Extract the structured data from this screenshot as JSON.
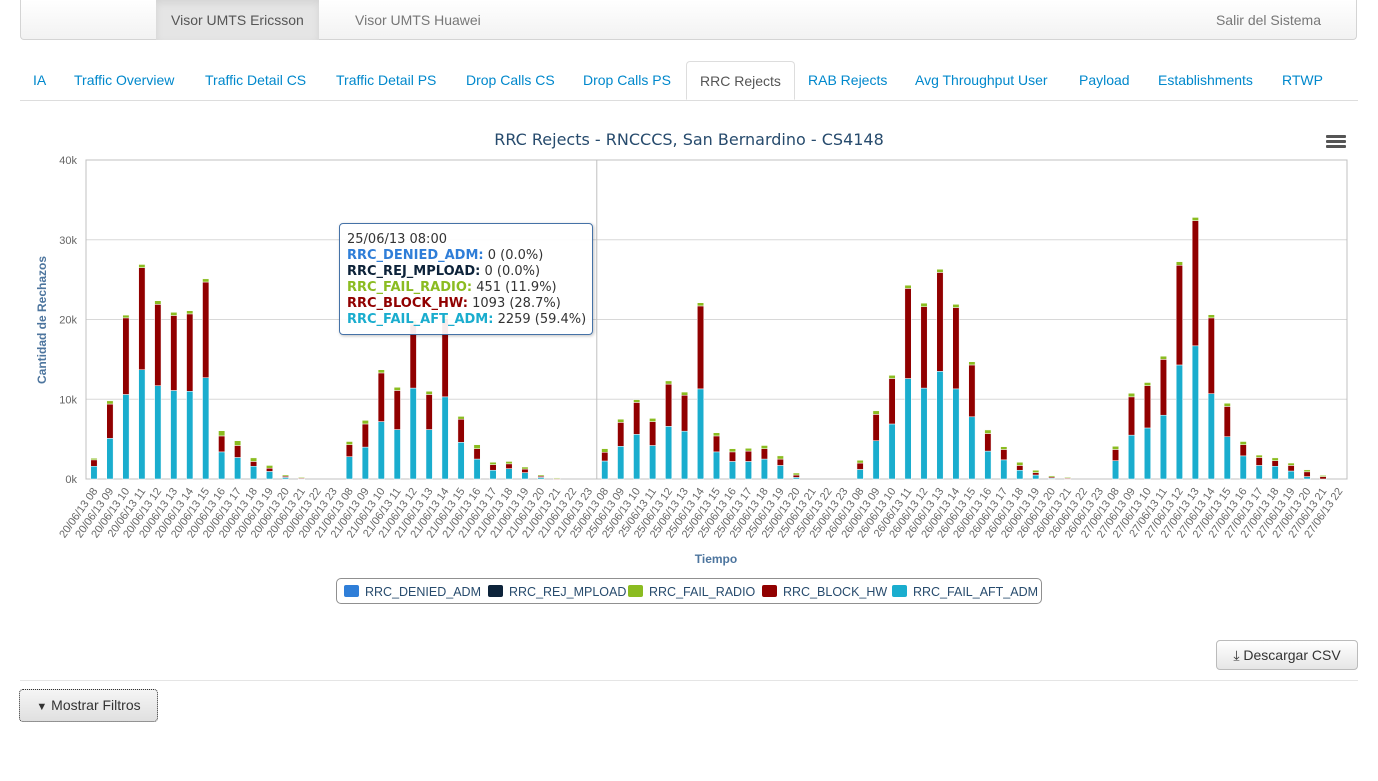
{
  "navbar": {
    "items": [
      "Visor UMTS Ericsson",
      "Visor UMTS Huawei"
    ],
    "logout": "Salir del Sistema"
  },
  "tabs": [
    "IA",
    "Traffic Overview",
    "Traffic Detail CS",
    "Traffic Detail PS",
    "Drop Calls CS",
    "Drop Calls PS",
    "RRC Rejects",
    "RAB Rejects",
    "Avg Throughput User",
    "Payload",
    "Establishments",
    "RTWP"
  ],
  "active_tab": "RRC Rejects",
  "colors": {
    "RRC_DENIED_ADM": "#2f7ed8",
    "RRC_REJ_MPLOAD": "#0d233a",
    "RRC_FAIL_RADIO": "#8bbc21",
    "RRC_BLOCK_HW": "#910000",
    "RRC_FAIL_AFT_ADM": "#1aadce"
  },
  "tooltip": {
    "header": "25/06/13 08:00",
    "rows": [
      {
        "name": "RRC_DENIED_ADM:",
        "value": "0 (0.0%)",
        "color": "#2f7ed8"
      },
      {
        "name": "RRC_REJ_MPLOAD:",
        "value": "0 (0.0%)",
        "color": "#0d233a"
      },
      {
        "name": "RRC_FAIL_RADIO:",
        "value": "451 (11.9%)",
        "color": "#8bbc21"
      },
      {
        "name": "RRC_BLOCK_HW:",
        "value": "1093 (28.7%)",
        "color": "#910000"
      },
      {
        "name": "RRC_FAIL_AFT_ADM:",
        "value": "2259 (59.4%)",
        "color": "#1aadce"
      }
    ]
  },
  "buttons": {
    "csv": "Descargar CSV",
    "filters": "Mostrar Filtros"
  },
  "chart_data": {
    "type": "bar",
    "stacked": true,
    "title": "RRC Rejects - RNCCCS, San Bernardino - CS4148",
    "xlabel": "Tiempo",
    "ylabel": "Cantidad de Rechazos",
    "ylim": [
      0,
      40000
    ],
    "yticks": [
      "0k",
      "10k",
      "20k",
      "30k",
      "40k"
    ],
    "legend_position": "bottom-center",
    "categories": [
      "20/06/13 08",
      "20/06/13 09",
      "20/06/13 10",
      "20/06/13 11",
      "20/06/13 12",
      "20/06/13 13",
      "20/06/13 14",
      "20/06/13 15",
      "20/06/13 16",
      "20/06/13 17",
      "20/06/13 18",
      "20/06/13 19",
      "20/06/13 20",
      "20/06/13 21",
      "20/06/13 22",
      "20/06/13 23",
      "21/06/13 08",
      "21/06/13 09",
      "21/06/13 10",
      "21/06/13 11",
      "21/06/13 12",
      "21/06/13 13",
      "21/06/13 14",
      "21/06/13 15",
      "21/06/13 16",
      "21/06/13 17",
      "21/06/13 18",
      "21/06/13 19",
      "21/06/13 20",
      "21/06/13 21",
      "21/06/13 22",
      "21/06/13 23",
      "25/06/13 08",
      "25/06/13 09",
      "25/06/13 10",
      "25/06/13 11",
      "25/06/13 12",
      "25/06/13 13",
      "25/06/13 14",
      "25/06/13 15",
      "25/06/13 16",
      "25/06/13 17",
      "25/06/13 18",
      "25/06/13 19",
      "25/06/13 20",
      "25/06/13 21",
      "25/06/13 22",
      "25/06/13 23",
      "26/06/13 08",
      "26/06/13 09",
      "26/06/13 10",
      "26/06/13 11",
      "26/06/13 12",
      "26/06/13 13",
      "26/06/13 14",
      "26/06/13 15",
      "26/06/13 16",
      "26/06/13 17",
      "26/06/13 18",
      "26/06/13 19",
      "26/06/13 20",
      "26/06/13 21",
      "26/06/13 22",
      "26/06/13 23",
      "27/06/13 08",
      "27/06/13 09",
      "27/06/13 10",
      "27/06/13 11",
      "27/06/13 12",
      "27/06/13 13",
      "27/06/13 14",
      "27/06/13 15",
      "27/06/13 16",
      "27/06/13 17",
      "27/06/13 18",
      "27/06/13 19",
      "27/06/13 20",
      "27/06/13 21",
      "27/06/13 22"
    ],
    "series": [
      {
        "name": "RRC_DENIED_ADM",
        "values": [
          0,
          0,
          0,
          0,
          0,
          0,
          0,
          0,
          0,
          0,
          0,
          0,
          0,
          0,
          0,
          0,
          0,
          0,
          0,
          0,
          0,
          0,
          0,
          0,
          0,
          0,
          0,
          0,
          0,
          0,
          0,
          0,
          0,
          0,
          0,
          0,
          0,
          0,
          0,
          0,
          0,
          0,
          0,
          0,
          0,
          0,
          0,
          0,
          0,
          0,
          0,
          0,
          0,
          0,
          0,
          0,
          0,
          0,
          0,
          0,
          0,
          0,
          0,
          0,
          0,
          0,
          0,
          0,
          0,
          0,
          0,
          0,
          0,
          0,
          0,
          0,
          0,
          0,
          0
        ]
      },
      {
        "name": "RRC_REJ_MPLOAD",
        "values": [
          0,
          0,
          0,
          0,
          0,
          0,
          0,
          0,
          0,
          0,
          0,
          0,
          0,
          0,
          0,
          0,
          0,
          0,
          0,
          0,
          0,
          0,
          0,
          0,
          0,
          0,
          0,
          0,
          0,
          0,
          0,
          0,
          0,
          0,
          0,
          0,
          0,
          0,
          0,
          0,
          0,
          0,
          0,
          0,
          0,
          0,
          0,
          0,
          0,
          0,
          0,
          0,
          0,
          0,
          0,
          0,
          0,
          0,
          0,
          0,
          0,
          0,
          0,
          0,
          0,
          0,
          0,
          0,
          0,
          0,
          0,
          0,
          0,
          0,
          0,
          0,
          0,
          0,
          0
        ]
      },
      {
        "name": "RRC_FAIL_RADIO",
        "values": [
          200,
          400,
          350,
          400,
          450,
          400,
          400,
          400,
          650,
          600,
          450,
          350,
          150,
          100,
          0,
          0,
          400,
          450,
          400,
          400,
          450,
          400,
          450,
          350,
          500,
          300,
          300,
          250,
          150,
          100,
          0,
          0,
          451,
          400,
          350,
          400,
          400,
          400,
          400,
          400,
          400,
          350,
          400,
          400,
          250,
          0,
          0,
          0,
          350,
          450,
          400,
          400,
          450,
          400,
          400,
          400,
          450,
          350,
          400,
          300,
          150,
          100,
          0,
          0,
          400,
          450,
          400,
          400,
          450,
          400,
          400,
          400,
          400,
          300,
          350,
          300,
          250,
          150,
          0
        ]
      },
      {
        "name": "RRC_BLOCK_HW",
        "values": [
          800,
          4300,
          9600,
          12800,
          10200,
          9400,
          9700,
          12000,
          2000,
          1500,
          600,
          400,
          150,
          50,
          0,
          0,
          1500,
          2900,
          6100,
          4900,
          8000,
          4400,
          9800,
          2900,
          1300,
          700,
          600,
          450,
          150,
          50,
          0,
          0,
          1093,
          3000,
          4000,
          3000,
          5300,
          4500,
          10400,
          2000,
          1200,
          1300,
          1300,
          800,
          300,
          0,
          0,
          0,
          800,
          3300,
          5700,
          11300,
          10200,
          12400,
          10200,
          6500,
          2200,
          1300,
          600,
          300,
          150,
          100,
          0,
          0,
          1400,
          4800,
          5300,
          7000,
          12500,
          15700,
          9500,
          3800,
          1400,
          1000,
          700,
          700,
          600,
          300,
          0
        ]
      },
      {
        "name": "RRC_FAIL_AFT_ADM",
        "values": [
          1600,
          5100,
          10600,
          13700,
          11700,
          11100,
          11000,
          12700,
          3400,
          2700,
          1600,
          950,
          200,
          50,
          0,
          0,
          2800,
          4000,
          7200,
          6200,
          11400,
          6200,
          10300,
          4600,
          2500,
          1100,
          1300,
          800,
          200,
          0,
          0,
          0,
          2259,
          4100,
          5600,
          4200,
          6600,
          6000,
          11300,
          3400,
          2200,
          2200,
          2500,
          1700,
          200,
          0,
          0,
          0,
          1200,
          4800,
          6900,
          12600,
          11400,
          13500,
          11300,
          7800,
          3500,
          2400,
          1100,
          500,
          100,
          0,
          0,
          0,
          2300,
          5500,
          6400,
          8000,
          14300,
          16700,
          10700,
          5300,
          2900,
          1700,
          1600,
          1000,
          300,
          0,
          0
        ]
      }
    ]
  }
}
